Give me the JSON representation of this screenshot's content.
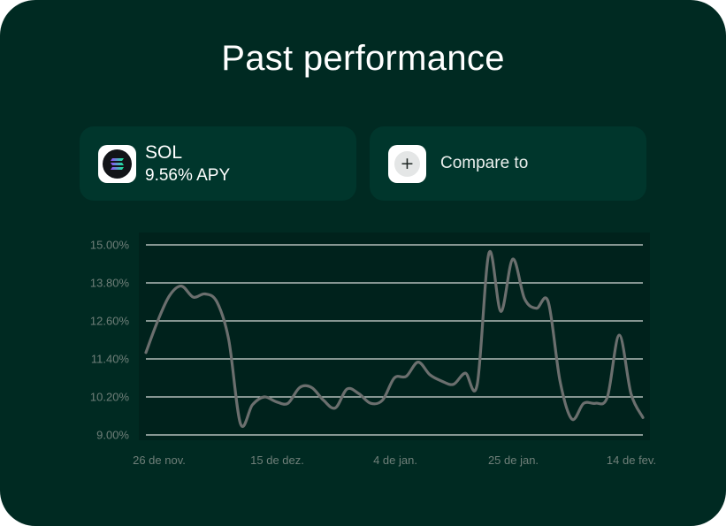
{
  "header": {
    "title": "Past performance"
  },
  "asset": {
    "name": "SOL",
    "apy": "9.56% APY",
    "icon": "solana-icon"
  },
  "compare": {
    "label": "Compare to",
    "icon": "plus-icon"
  },
  "colors": {
    "background": "#002a22",
    "pill": "#00362c",
    "line": "#6b6f6e",
    "grid": "#d6dcd9",
    "tick": "#6f7f79"
  },
  "chart_data": {
    "type": "line",
    "title": "",
    "xlabel": "",
    "ylabel": "",
    "ylim": [
      9.0,
      15.0
    ],
    "y_ticks": [
      "15.00%",
      "13.80%",
      "12.60%",
      "11.40%",
      "10.20%",
      "9.00%"
    ],
    "x_ticks": [
      "26 de nov.",
      "15 de dez.",
      "4 de jan.",
      "25 de jan.",
      "14 de fev."
    ],
    "grid": true,
    "legend": "none",
    "series": [
      {
        "values": [
          11.6,
          12.6,
          13.4,
          13.7,
          13.35,
          13.45,
          13.2,
          12.0,
          9.35,
          9.95,
          10.2,
          10.05,
          10.0,
          10.5,
          10.5,
          10.1,
          9.85,
          10.45,
          10.3,
          10.0,
          10.1,
          10.8,
          10.85,
          11.3,
          10.9,
          10.7,
          10.6,
          10.95,
          10.6,
          14.75,
          12.9,
          14.55,
          13.3,
          13.0,
          13.2,
          10.7,
          9.5,
          10.0,
          10.0,
          10.2,
          12.15,
          10.3,
          9.55
        ]
      }
    ]
  }
}
